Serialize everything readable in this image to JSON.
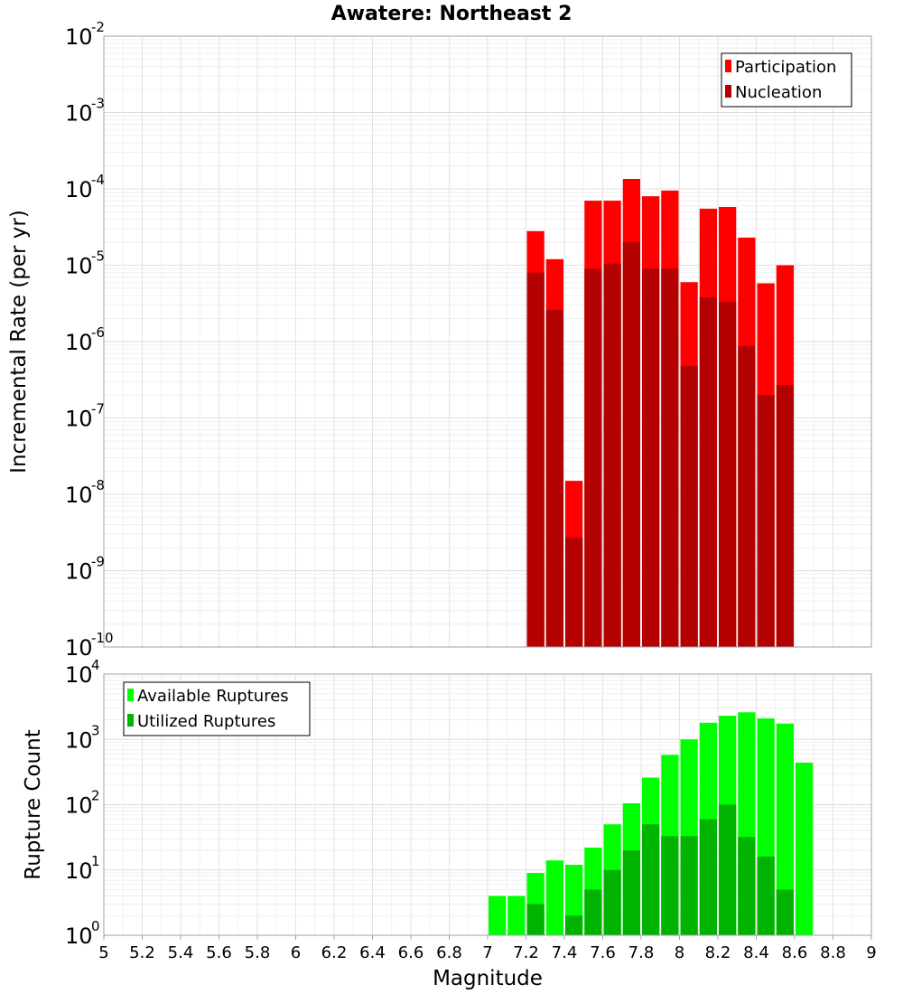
{
  "title": "Awatere: Northeast 2",
  "x_axis_label": "Magnitude",
  "x_ticks": [
    "5",
    "5.2",
    "5.4",
    "5.6",
    "5.8",
    "6",
    "6.2",
    "6.4",
    "6.6",
    "6.8",
    "7",
    "7.2",
    "7.4",
    "7.6",
    "7.8",
    "8",
    "8.2",
    "8.4",
    "8.6",
    "8.8",
    "9"
  ],
  "chart_data": [
    {
      "type": "bar",
      "ylabel": "Incremental Rate (per yr)",
      "yscale": "log",
      "ylim": [
        1e-10,
        0.01
      ],
      "y_tick_exponents": [
        "-10",
        "-9",
        "-8",
        "-7",
        "-6",
        "-5",
        "-4",
        "-3",
        "-2"
      ],
      "xlim": [
        5,
        9
      ],
      "bar_width": 0.1,
      "legend_position": "top-right",
      "series": [
        {
          "name": "Participation",
          "color": "#ff0000",
          "x": [
            7.25,
            7.35,
            7.45,
            7.55,
            7.65,
            7.75,
            7.85,
            7.95,
            8.05,
            8.15,
            8.25,
            8.35,
            8.45,
            8.55
          ],
          "values": [
            2.8e-05,
            1.2e-05,
            1.5e-08,
            7e-05,
            7e-05,
            0.000135,
            8e-05,
            9.5e-05,
            6e-06,
            5.5e-05,
            5.8e-05,
            2.3e-05,
            5.8e-06,
            1e-05
          ]
        },
        {
          "name": "Nucleation",
          "color": "#b30000",
          "x": [
            7.25,
            7.35,
            7.45,
            7.55,
            7.65,
            7.75,
            7.85,
            7.95,
            8.05,
            8.15,
            8.25,
            8.35,
            8.45,
            8.55
          ],
          "values": [
            8e-06,
            2.6e-06,
            2.7e-09,
            9e-06,
            1.05e-05,
            2e-05,
            9e-06,
            9e-06,
            4.8e-07,
            3.8e-06,
            3.3e-06,
            8.8e-07,
            2e-07,
            2.7e-07
          ]
        }
      ]
    },
    {
      "type": "bar",
      "ylabel": "Rupture Count",
      "yscale": "log",
      "ylim": [
        1,
        10000
      ],
      "y_tick_exponents": [
        "0",
        "1",
        "2",
        "3",
        "4"
      ],
      "xlim": [
        5,
        9
      ],
      "bar_width": 0.1,
      "legend_position": "top-left",
      "series": [
        {
          "name": "Available Ruptures",
          "color": "#00ff00",
          "x": [
            6.95,
            7.05,
            7.15,
            7.25,
            7.35,
            7.45,
            7.55,
            7.65,
            7.75,
            7.85,
            7.95,
            8.05,
            8.15,
            8.25,
            8.35,
            8.45,
            8.55,
            8.65
          ],
          "values": [
            1,
            4,
            4,
            9,
            14,
            12,
            22,
            50,
            105,
            260,
            580,
            1000,
            1800,
            2300,
            2600,
            2100,
            1750,
            440
          ]
        },
        {
          "name": "Utilized Ruptures",
          "color": "#00b300",
          "x": [
            7.15,
            7.25,
            7.35,
            7.45,
            7.55,
            7.65,
            7.75,
            7.85,
            7.95,
            8.05,
            8.15,
            8.25,
            8.35,
            8.45,
            8.55
          ],
          "values": [
            1,
            3,
            1,
            2,
            5,
            10,
            20,
            50,
            33,
            33,
            60,
            100,
            32,
            16,
            5
          ]
        }
      ]
    }
  ]
}
